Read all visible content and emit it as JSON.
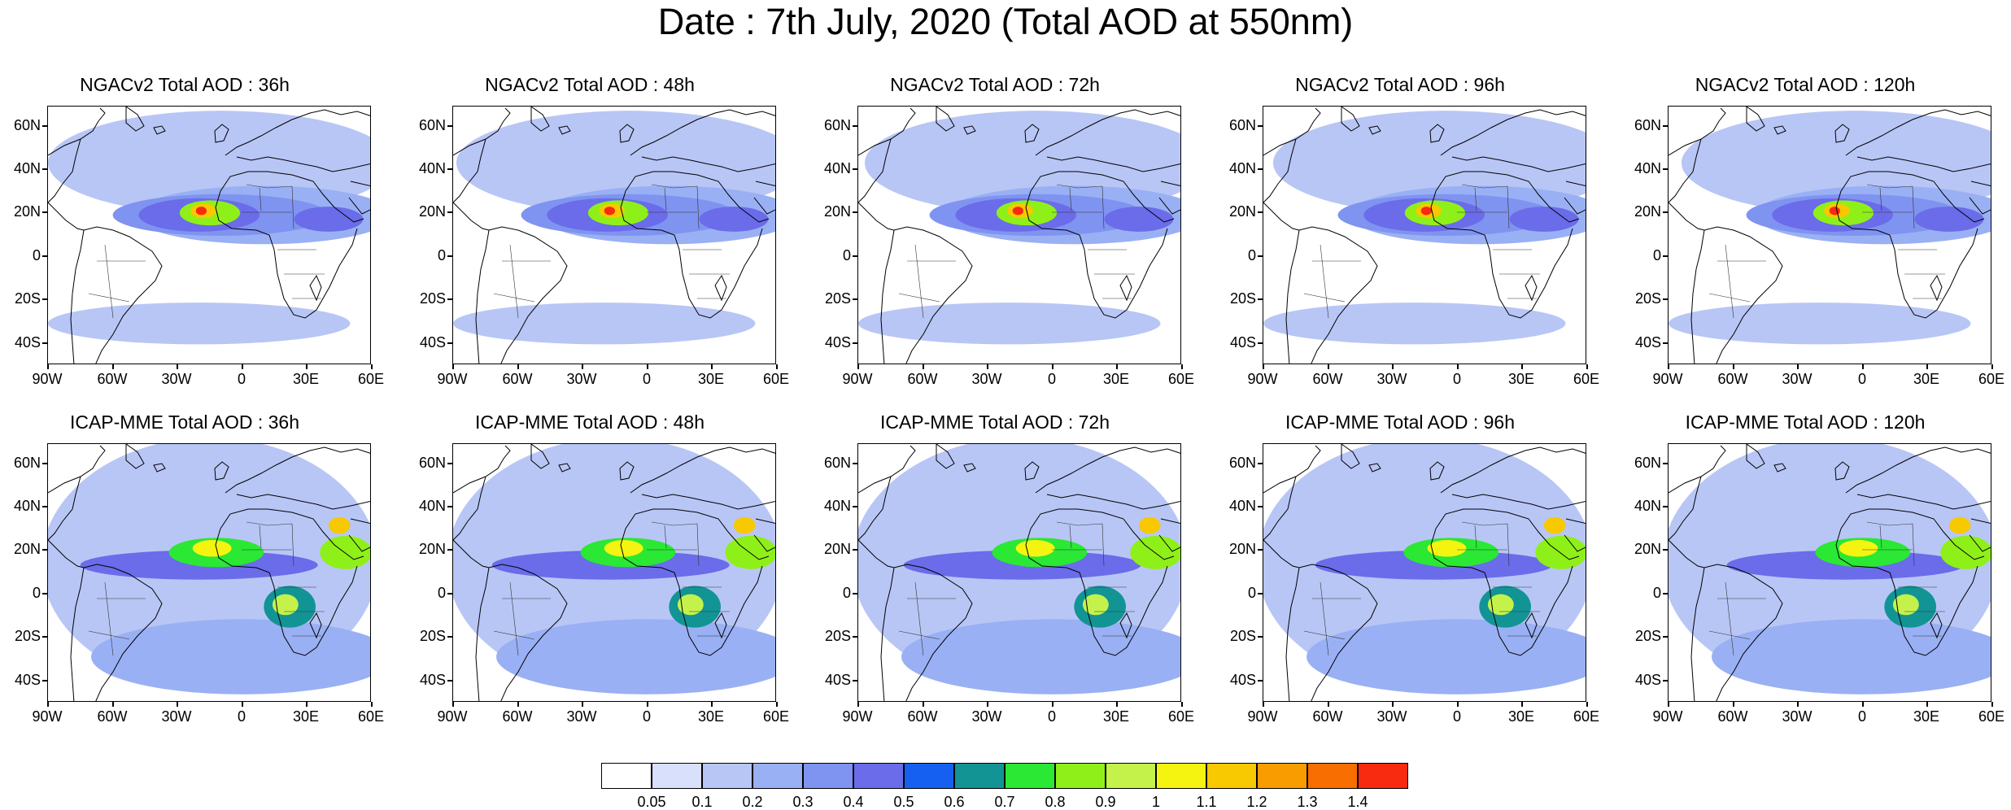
{
  "title": "Date : 7th July, 2020 (Total AOD at 550nm)",
  "lat_labels": [
    "60N",
    "40N",
    "20N",
    "0",
    "20S",
    "40S"
  ],
  "lon_labels": [
    "90W",
    "60W",
    "30W",
    "0",
    "30E",
    "60E"
  ],
  "panels": [
    {
      "title": "NGACv2 Total AOD : 36h",
      "model": "NGACv2",
      "lead_hours": 36,
      "row": 0,
      "col": 0
    },
    {
      "title": "NGACv2 Total AOD : 48h",
      "model": "NGACv2",
      "lead_hours": 48,
      "row": 0,
      "col": 1
    },
    {
      "title": "NGACv2 Total AOD : 72h",
      "model": "NGACv2",
      "lead_hours": 72,
      "row": 0,
      "col": 2
    },
    {
      "title": "NGACv2 Total AOD : 96h",
      "model": "NGACv2",
      "lead_hours": 96,
      "row": 0,
      "col": 3
    },
    {
      "title": "NGACv2 Total AOD : 120h",
      "model": "NGACv2",
      "lead_hours": 120,
      "row": 0,
      "col": 4
    },
    {
      "title": "ICAP-MME Total AOD : 36h",
      "model": "ICAP-MME",
      "lead_hours": 36,
      "row": 1,
      "col": 0
    },
    {
      "title": "ICAP-MME Total AOD : 48h",
      "model": "ICAP-MME",
      "lead_hours": 48,
      "row": 1,
      "col": 1
    },
    {
      "title": "ICAP-MME Total AOD : 72h",
      "model": "ICAP-MME",
      "lead_hours": 72,
      "row": 1,
      "col": 2
    },
    {
      "title": "ICAP-MME Total AOD : 96h",
      "model": "ICAP-MME",
      "lead_hours": 96,
      "row": 1,
      "col": 3
    },
    {
      "title": "ICAP-MME Total AOD : 120h",
      "model": "ICAP-MME",
      "lead_hours": 120,
      "row": 1,
      "col": 4
    }
  ],
  "colorbar": {
    "labels": [
      "0.05",
      "0.1",
      "0.2",
      "0.3",
      "0.4",
      "0.5",
      "0.6",
      "0.7",
      "0.8",
      "0.9",
      "1",
      "1.1",
      "1.2",
      "1.3",
      "1.4"
    ],
    "colors": [
      "#ffffff",
      "#d8e0fb",
      "#b8c6f6",
      "#9ab0f4",
      "#7f93f0",
      "#6a6cea",
      "#1560f0",
      "#129494",
      "#2ae834",
      "#8ef018",
      "#c4f24a",
      "#f4f410",
      "#f8c800",
      "#f89c00",
      "#f86e00",
      "#f82a10"
    ]
  }
}
